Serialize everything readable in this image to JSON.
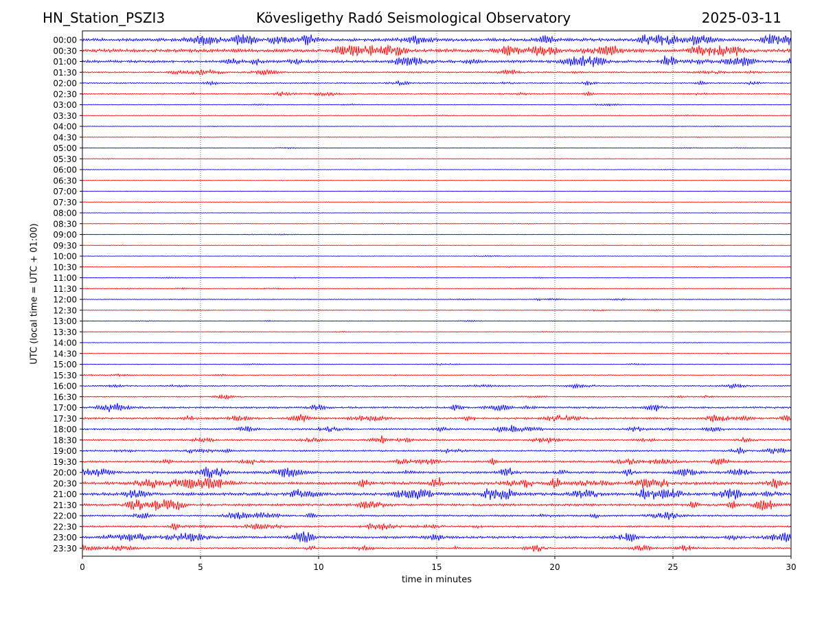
{
  "header": {
    "station": "HN_Station_PSZI3",
    "observatory": "Kövesligethy Radó Seismological Observatory",
    "date": "2025-03-11"
  },
  "chart_data": {
    "type": "line",
    "title": "Kövesligethy Radó Seismological Observatory",
    "xlabel": "time in minutes",
    "ylabel": "UTC (local time = UTC + 01:00)",
    "xlim": [
      0,
      30
    ],
    "xticks": [
      "0",
      "5",
      "10",
      "15",
      "20",
      "25",
      "30"
    ],
    "vertical_gridlines_at": [
      5,
      10,
      15,
      20,
      25
    ],
    "colors": {
      "even_rows": "#0000ff",
      "odd_rows": "#ff0000"
    },
    "rows": [
      {
        "label": "00:00",
        "activity": 0.95
      },
      {
        "label": "00:30",
        "activity": 1.0
      },
      {
        "label": "01:00",
        "activity": 0.75
      },
      {
        "label": "01:30",
        "activity": 0.35
      },
      {
        "label": "02:00",
        "activity": 0.3
      },
      {
        "label": "02:30",
        "activity": 0.25
      },
      {
        "label": "03:00",
        "activity": 0.12
      },
      {
        "label": "03:30",
        "activity": 0.06
      },
      {
        "label": "04:00",
        "activity": 0.05
      },
      {
        "label": "04:30",
        "activity": 0.05
      },
      {
        "label": "05:00",
        "activity": 0.06
      },
      {
        "label": "05:30",
        "activity": 0.05
      },
      {
        "label": "06:00",
        "activity": 0.04
      },
      {
        "label": "06:30",
        "activity": 0.04
      },
      {
        "label": "07:00",
        "activity": 0.05
      },
      {
        "label": "07:30",
        "activity": 0.04
      },
      {
        "label": "08:00",
        "activity": 0.03
      },
      {
        "label": "08:30",
        "activity": 0.05
      },
      {
        "label": "09:00",
        "activity": 0.06
      },
      {
        "label": "09:30",
        "activity": 0.05
      },
      {
        "label": "10:00",
        "activity": 0.05
      },
      {
        "label": "10:30",
        "activity": 0.06
      },
      {
        "label": "11:00",
        "activity": 0.08
      },
      {
        "label": "11:30",
        "activity": 0.12
      },
      {
        "label": "12:00",
        "activity": 0.14
      },
      {
        "label": "12:30",
        "activity": 0.08
      },
      {
        "label": "13:00",
        "activity": 0.07
      },
      {
        "label": "13:30",
        "activity": 0.06
      },
      {
        "label": "14:00",
        "activity": 0.04
      },
      {
        "label": "14:30",
        "activity": 0.07
      },
      {
        "label": "15:00",
        "activity": 0.1
      },
      {
        "label": "15:30",
        "activity": 0.14
      },
      {
        "label": "16:00",
        "activity": 0.3
      },
      {
        "label": "16:30",
        "activity": 0.22
      },
      {
        "label": "17:00",
        "activity": 0.5
      },
      {
        "label": "17:30",
        "activity": 0.55
      },
      {
        "label": "18:00",
        "activity": 0.45
      },
      {
        "label": "18:30",
        "activity": 0.4
      },
      {
        "label": "19:00",
        "activity": 0.42
      },
      {
        "label": "19:30",
        "activity": 0.5
      },
      {
        "label": "20:00",
        "activity": 0.65
      },
      {
        "label": "20:30",
        "activity": 0.85
      },
      {
        "label": "21:00",
        "activity": 0.9
      },
      {
        "label": "21:30",
        "activity": 0.7
      },
      {
        "label": "22:00",
        "activity": 0.45
      },
      {
        "label": "22:30",
        "activity": 0.45
      },
      {
        "label": "23:00",
        "activity": 0.7
      },
      {
        "label": "23:30",
        "activity": 0.4
      }
    ]
  }
}
